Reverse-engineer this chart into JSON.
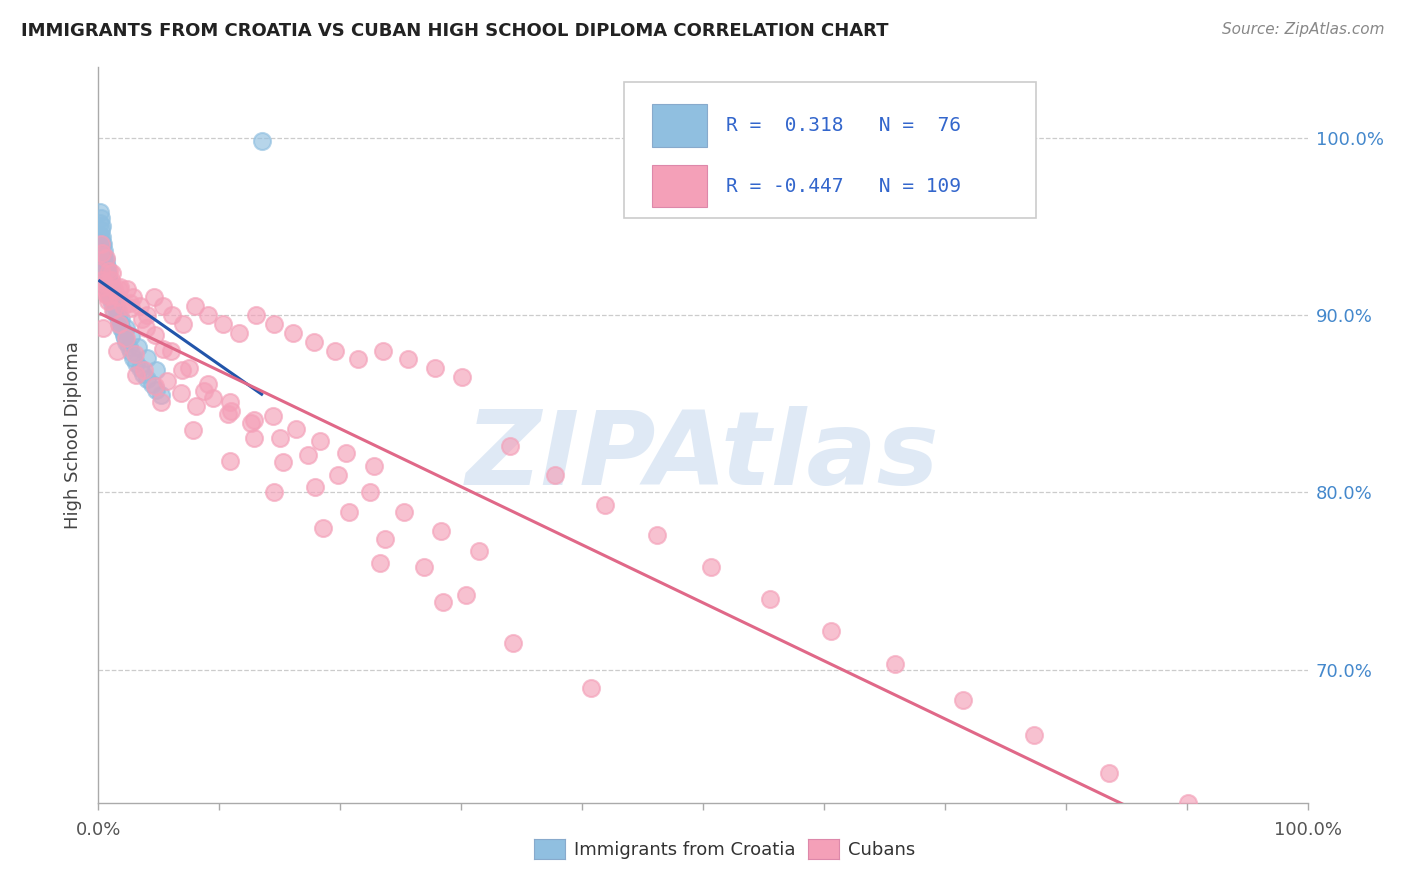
{
  "title": "IMMIGRANTS FROM CROATIA VS CUBAN HIGH SCHOOL DIPLOMA CORRELATION CHART",
  "source": "Source: ZipAtlas.com",
  "ylabel": "High School Diploma",
  "r1": 0.318,
  "n1": 76,
  "r2": -0.447,
  "n2": 109,
  "color_blue": "#90BFE0",
  "color_pink": "#F4A0B8",
  "color_blue_line": "#2255AA",
  "color_pink_line": "#E06888",
  "background": "#FFFFFF",
  "grid_color": "#CCCCCC",
  "watermark": "ZIPAtlas",
  "watermark_color": "#C5D8EE",
  "legend_label1": "Immigrants from Croatia",
  "legend_label2": "Cubans",
  "ylim_low": 0.625,
  "ylim_high": 1.04,
  "xlim_low": 0.0,
  "xlim_high": 1.0,
  "blue_x": [
    0.001,
    0.001,
    0.001,
    0.001,
    0.002,
    0.002,
    0.002,
    0.002,
    0.003,
    0.003,
    0.003,
    0.003,
    0.004,
    0.004,
    0.004,
    0.005,
    0.005,
    0.005,
    0.006,
    0.006,
    0.006,
    0.007,
    0.007,
    0.008,
    0.008,
    0.009,
    0.009,
    0.01,
    0.01,
    0.011,
    0.011,
    0.012,
    0.013,
    0.013,
    0.014,
    0.015,
    0.016,
    0.017,
    0.018,
    0.019,
    0.02,
    0.021,
    0.022,
    0.023,
    0.025,
    0.027,
    0.029,
    0.031,
    0.034,
    0.037,
    0.04,
    0.044,
    0.048,
    0.052,
    0.001,
    0.001,
    0.002,
    0.002,
    0.003,
    0.003,
    0.004,
    0.005,
    0.006,
    0.007,
    0.008,
    0.009,
    0.011,
    0.013,
    0.016,
    0.019,
    0.023,
    0.027,
    0.033,
    0.04,
    0.048,
    0.135
  ],
  "blue_y": [
    0.94,
    0.935,
    0.93,
    0.945,
    0.938,
    0.932,
    0.928,
    0.942,
    0.935,
    0.928,
    0.922,
    0.94,
    0.933,
    0.926,
    0.92,
    0.931,
    0.924,
    0.918,
    0.928,
    0.922,
    0.916,
    0.925,
    0.918,
    0.921,
    0.915,
    0.918,
    0.912,
    0.916,
    0.91,
    0.913,
    0.907,
    0.91,
    0.908,
    0.902,
    0.905,
    0.902,
    0.899,
    0.897,
    0.895,
    0.893,
    0.891,
    0.889,
    0.887,
    0.885,
    0.882,
    0.879,
    0.876,
    0.873,
    0.87,
    0.867,
    0.864,
    0.861,
    0.858,
    0.855,
    0.952,
    0.958,
    0.948,
    0.955,
    0.944,
    0.95,
    0.94,
    0.936,
    0.931,
    0.927,
    0.922,
    0.918,
    0.913,
    0.908,
    0.903,
    0.898,
    0.893,
    0.888,
    0.882,
    0.876,
    0.869,
    0.998
  ],
  "pink_x": [
    0.003,
    0.004,
    0.006,
    0.008,
    0.01,
    0.013,
    0.016,
    0.02,
    0.024,
    0.029,
    0.034,
    0.04,
    0.046,
    0.053,
    0.061,
    0.07,
    0.08,
    0.091,
    0.103,
    0.116,
    0.13,
    0.145,
    0.161,
    0.178,
    0.196,
    0.215,
    0.235,
    0.256,
    0.278,
    0.301,
    0.002,
    0.005,
    0.008,
    0.012,
    0.017,
    0.023,
    0.03,
    0.038,
    0.047,
    0.057,
    0.068,
    0.081,
    0.095,
    0.11,
    0.126,
    0.144,
    0.163,
    0.183,
    0.205,
    0.228,
    0.002,
    0.006,
    0.011,
    0.018,
    0.026,
    0.036,
    0.047,
    0.06,
    0.075,
    0.091,
    0.109,
    0.129,
    0.15,
    0.173,
    0.198,
    0.225,
    0.253,
    0.283,
    0.315,
    0.003,
    0.009,
    0.017,
    0.027,
    0.039,
    0.053,
    0.069,
    0.087,
    0.107,
    0.129,
    0.153,
    0.179,
    0.207,
    0.237,
    0.269,
    0.304,
    0.34,
    0.378,
    0.419,
    0.462,
    0.507,
    0.555,
    0.606,
    0.659,
    0.715,
    0.774,
    0.836,
    0.901,
    0.004,
    0.015,
    0.031,
    0.052,
    0.078,
    0.109,
    0.145,
    0.186,
    0.233,
    0.285,
    0.343,
    0.407
  ],
  "pink_y": [
    0.92,
    0.916,
    0.912,
    0.908,
    0.92,
    0.915,
    0.91,
    0.905,
    0.915,
    0.91,
    0.905,
    0.9,
    0.91,
    0.905,
    0.9,
    0.895,
    0.905,
    0.9,
    0.895,
    0.89,
    0.9,
    0.895,
    0.89,
    0.885,
    0.88,
    0.875,
    0.88,
    0.875,
    0.87,
    0.865,
    0.925,
    0.918,
    0.911,
    0.903,
    0.895,
    0.887,
    0.878,
    0.869,
    0.86,
    0.863,
    0.856,
    0.849,
    0.853,
    0.846,
    0.839,
    0.843,
    0.836,
    0.829,
    0.822,
    0.815,
    0.94,
    0.932,
    0.924,
    0.916,
    0.907,
    0.898,
    0.889,
    0.88,
    0.87,
    0.861,
    0.851,
    0.841,
    0.831,
    0.821,
    0.81,
    0.8,
    0.789,
    0.778,
    0.767,
    0.935,
    0.925,
    0.915,
    0.904,
    0.893,
    0.881,
    0.869,
    0.857,
    0.844,
    0.831,
    0.817,
    0.803,
    0.789,
    0.774,
    0.758,
    0.742,
    0.826,
    0.81,
    0.793,
    0.776,
    0.758,
    0.74,
    0.722,
    0.703,
    0.683,
    0.663,
    0.642,
    0.621,
    0.893,
    0.88,
    0.866,
    0.851,
    0.835,
    0.818,
    0.8,
    0.78,
    0.76,
    0.738,
    0.715,
    0.69
  ]
}
